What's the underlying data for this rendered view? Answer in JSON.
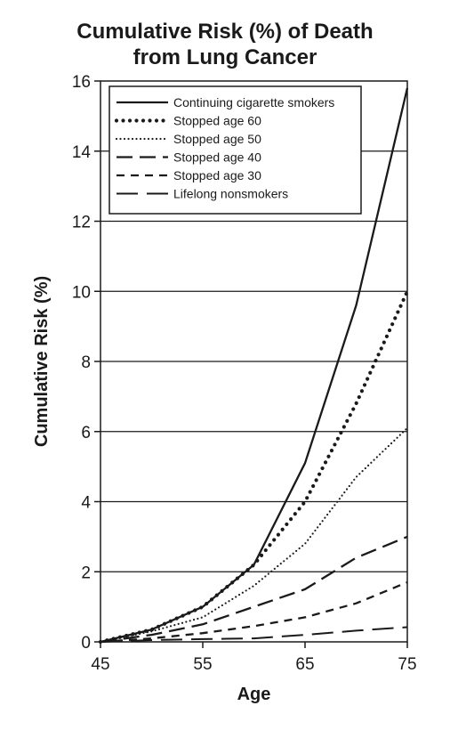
{
  "chart_data": {
    "type": "line",
    "title_lines": [
      "Cumulative Risk (%) of Death",
      "from Lung Cancer"
    ],
    "xlabel": "Age",
    "ylabel": "Cumulative Risk (%)",
    "xlim": [
      45,
      75
    ],
    "ylim": [
      0,
      16
    ],
    "x_ticks": [
      45,
      55,
      65,
      75
    ],
    "y_ticks": [
      0,
      2,
      4,
      6,
      8,
      10,
      12,
      14,
      16
    ],
    "grid": "horizontal",
    "legend_position": "top-left",
    "series": [
      {
        "name": "Continuing cigarette smokers",
        "style": "solid",
        "x": [
          45,
          50,
          55,
          60,
          65,
          70,
          75
        ],
        "y": [
          0,
          0.35,
          1.0,
          2.2,
          5.1,
          9.6,
          15.8
        ]
      },
      {
        "name": "Stopped age 60",
        "style": "dotted-heavy",
        "x": [
          45,
          50,
          55,
          60,
          65,
          70,
          75
        ],
        "y": [
          0,
          0.35,
          1.0,
          2.2,
          4.0,
          6.8,
          10.0
        ]
      },
      {
        "name": "Stopped age 50",
        "style": "dotted",
        "x": [
          45,
          50,
          55,
          60,
          65,
          70,
          75
        ],
        "y": [
          0,
          0.3,
          0.7,
          1.6,
          2.8,
          4.7,
          6.1
        ]
      },
      {
        "name": "Stopped age 40",
        "style": "long-dash",
        "x": [
          45,
          50,
          55,
          60,
          65,
          70,
          75
        ],
        "y": [
          0,
          0.2,
          0.5,
          1.0,
          1.5,
          2.4,
          3.0
        ]
      },
      {
        "name": "Stopped age 30",
        "style": "dash",
        "x": [
          45,
          50,
          55,
          60,
          65,
          70,
          75
        ],
        "y": [
          0,
          0.1,
          0.25,
          0.45,
          0.7,
          1.1,
          1.7
        ]
      },
      {
        "name": "Lifelong nonsmokers",
        "style": "long-dash-thin",
        "x": [
          45,
          50,
          55,
          60,
          65,
          70,
          75
        ],
        "y": [
          0,
          0.05,
          0.08,
          0.1,
          0.2,
          0.32,
          0.42
        ]
      }
    ]
  }
}
